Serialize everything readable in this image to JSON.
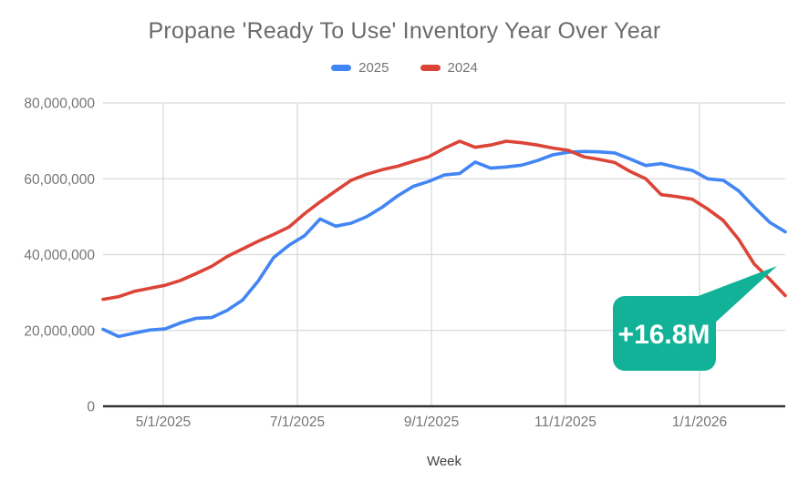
{
  "title": "Propane 'Ready To Use' Inventory Year Over Year",
  "legend": {
    "items": [
      {
        "label": "2025",
        "color": "#4285f4"
      },
      {
        "label": "2024",
        "color": "#db4437"
      }
    ]
  },
  "colors": {
    "series_2025": "#4285f4",
    "series_2024": "#db4437",
    "annotation_fill": "#12b298",
    "annotation_text": "#ffffff",
    "gridline": "#dadada",
    "axis_line": "#333333",
    "tick_label": "#757575",
    "title_text": "#6b6b6b",
    "axis_title_text": "#424242"
  },
  "chart_data": {
    "type": "line",
    "title": "Propane 'Ready To Use' Inventory Year Over Year",
    "xlabel": "Week",
    "ylabel": "",
    "ylim": [
      0,
      80000000
    ],
    "grid": true,
    "legend_position": "top-center",
    "y_tick_labels": [
      "80,000,000",
      "60,000,000",
      "40,000,000",
      "20,000,000",
      "0"
    ],
    "y_tick_values": [
      80000000,
      60000000,
      40000000,
      20000000,
      0
    ],
    "x_tick_labels": [
      "5/1/2025",
      "7/1/2025",
      "9/1/2025",
      "11/1/2025",
      "1/1/2026"
    ],
    "x": [
      "4/4/2025",
      "4/11/2025",
      "4/18/2025",
      "4/25/2025",
      "5/2/2025",
      "5/9/2025",
      "5/16/2025",
      "5/23/2025",
      "5/30/2025",
      "6/6/2025",
      "6/13/2025",
      "6/20/2025",
      "6/27/2025",
      "7/4/2025",
      "7/11/2025",
      "7/18/2025",
      "7/25/2025",
      "8/1/2025",
      "8/8/2025",
      "8/15/2025",
      "8/22/2025",
      "8/29/2025",
      "9/5/2025",
      "9/12/2025",
      "9/19/2025",
      "9/26/2025",
      "10/3/2025",
      "10/10/2025",
      "10/17/2025",
      "10/24/2025",
      "10/31/2025",
      "11/7/2025",
      "11/14/2025",
      "11/21/2025",
      "11/28/2025",
      "12/5/2025",
      "12/12/2025",
      "12/19/2025",
      "12/26/2025",
      "1/2/2026",
      "1/9/2026",
      "1/16/2026",
      "1/23/2026",
      "1/30/2026",
      "2/6/2026"
    ],
    "series": [
      {
        "name": "2025",
        "color": "#4285f4",
        "values": [
          20300000,
          18400000,
          19300000,
          20100000,
          20400000,
          22000000,
          23200000,
          23400000,
          25300000,
          28000000,
          33000000,
          39200000,
          42500000,
          45000000,
          49400000,
          47500000,
          48300000,
          50000000,
          52500000,
          55500000,
          58000000,
          59300000,
          61000000,
          61400000,
          64400000,
          62800000,
          63100000,
          63600000,
          64800000,
          66300000,
          67000000,
          67200000,
          67100000,
          66800000,
          65200000,
          63500000,
          64000000,
          63000000,
          62200000,
          60000000,
          59600000,
          56800000,
          52500000,
          48500000,
          46000000
        ]
      },
      {
        "name": "2024",
        "color": "#db4437",
        "values": [
          28200000,
          28900000,
          30300000,
          31100000,
          31900000,
          33200000,
          35000000,
          36900000,
          39500000,
          41500000,
          43500000,
          45300000,
          47300000,
          50800000,
          53900000,
          56800000,
          59600000,
          61200000,
          62400000,
          63300000,
          64600000,
          65800000,
          68000000,
          69900000,
          68300000,
          68900000,
          69900000,
          69500000,
          68900000,
          68100000,
          67500000,
          65800000,
          65100000,
          64300000,
          61900000,
          60000000,
          55800000,
          55300000,
          54600000,
          52000000,
          49000000,
          44000000,
          37500000,
          33500000,
          29200000
        ]
      }
    ],
    "annotation": {
      "label": "+16.8M",
      "meaning": "gap between 2025 and 2024 series at latest week",
      "fill": "#12b298",
      "text_color": "#ffffff"
    }
  }
}
